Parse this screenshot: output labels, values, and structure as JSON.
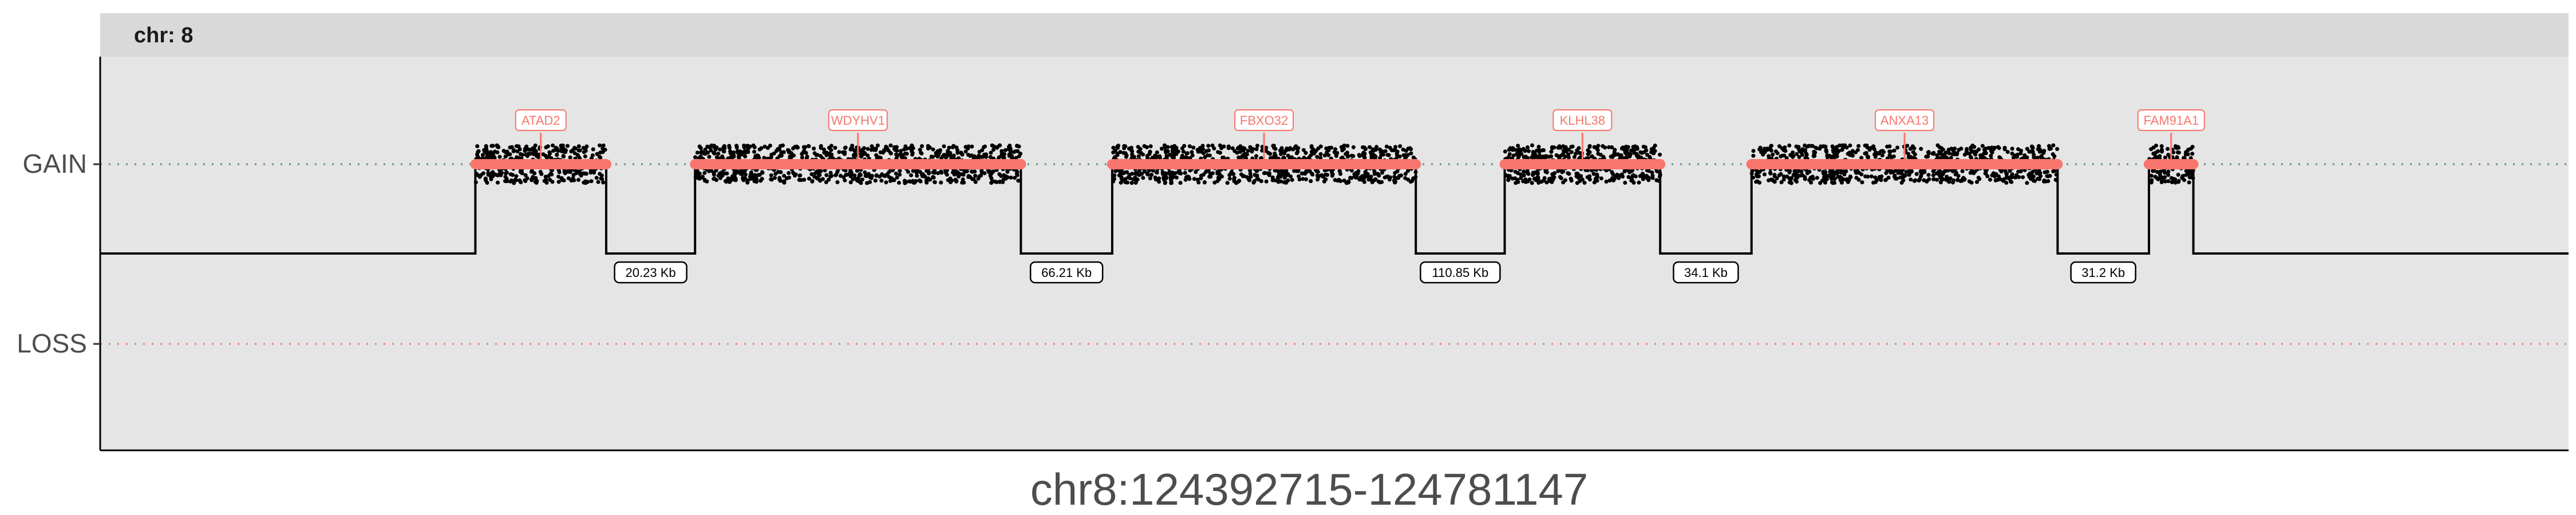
{
  "chart_data": {
    "type": "segment",
    "facet_label": "chr: 8",
    "y_categories": [
      "GAIN",
      "LOSS"
    ],
    "xlabel": "chr8:124392715-124781147",
    "colors": {
      "panel_background": "#e5e5e5",
      "strip_background": "#d9d9d9",
      "gain_segment": "#f8766d",
      "gain_dotted_line": "#5a8f7b",
      "loss_dotted_line": "#f8766d",
      "outline": "#000000",
      "points": "#000000"
    },
    "genes": [
      {
        "name": "ATAD2",
        "span": [
          0.152,
          0.205
        ]
      },
      {
        "name": "WDYHV1",
        "span": [
          0.241,
          0.373
        ]
      },
      {
        "name": "FBXO32",
        "span": [
          0.41,
          0.533
        ]
      },
      {
        "name": "KLHL38",
        "span": [
          0.569,
          0.632
        ]
      },
      {
        "name": "ANXA13",
        "span": [
          0.669,
          0.793
        ]
      },
      {
        "name": "FAM91A1",
        "span": [
          0.83,
          0.848
        ]
      }
    ],
    "gaps": [
      {
        "label": "20.23 Kb"
      },
      {
        "label": "66.21 Kb"
      },
      {
        "label": "110.85 Kb"
      },
      {
        "label": "34.1 Kb"
      },
      {
        "label": "31.2 Kb"
      }
    ]
  }
}
